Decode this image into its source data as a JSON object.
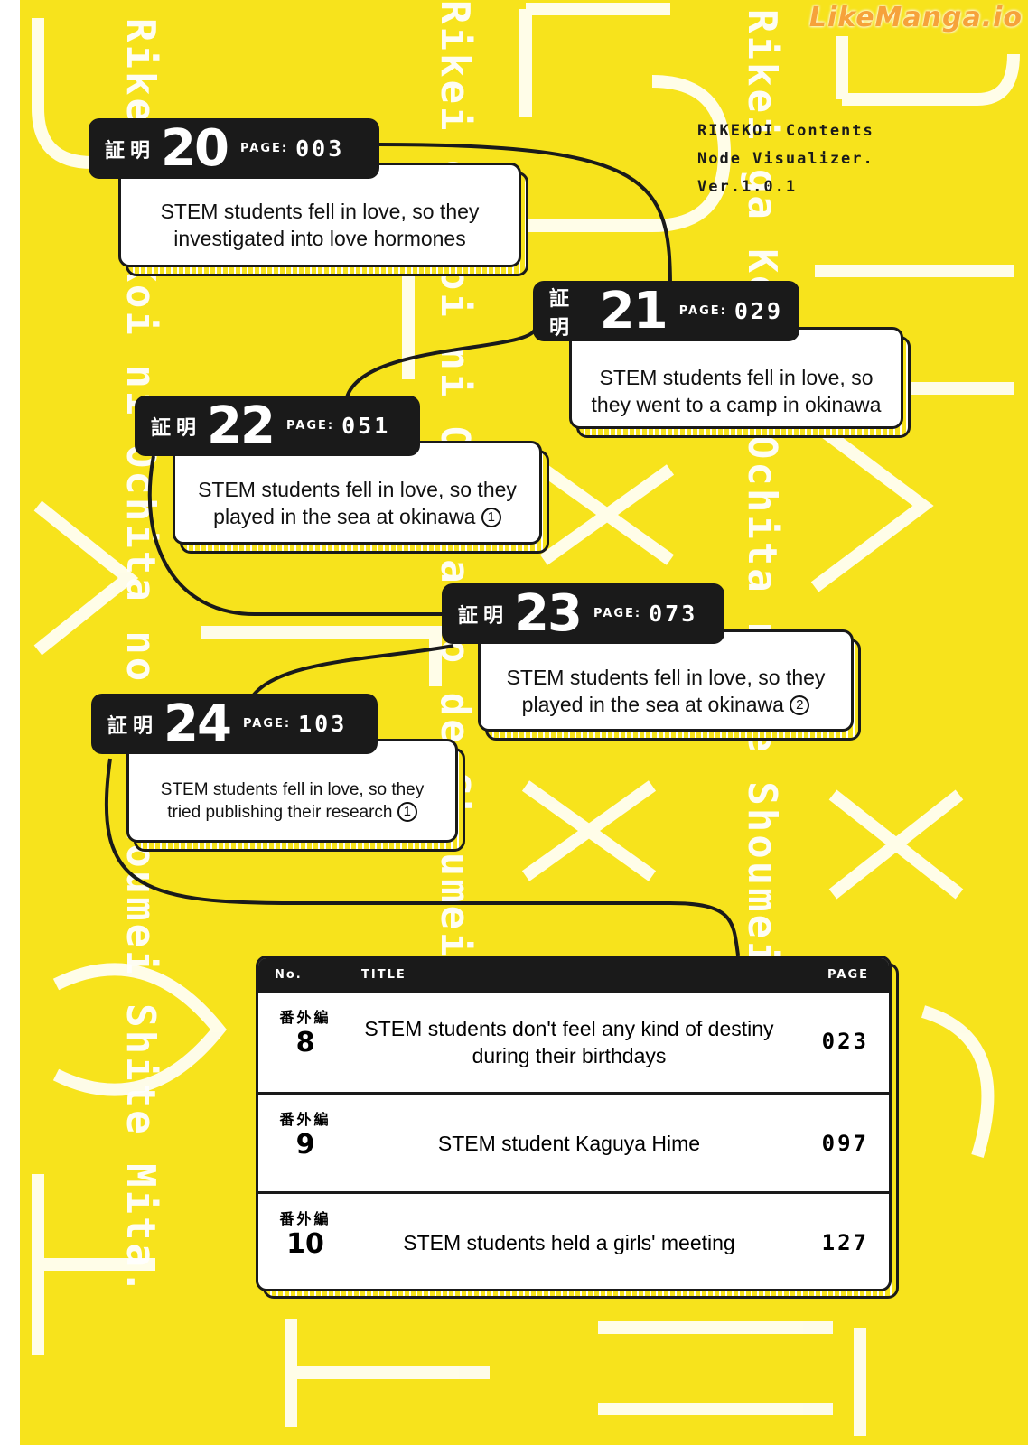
{
  "watermark": "LikeManga.io",
  "background_text": [
    "Rikei ga Koi ni Ochita no de Shoumei Shite Mita.",
    "Rikei ga Koi ni Ochita no de Shoumei Shite Mita.",
    "Rikei ga Koi ni Ochita no de Shoumei Shite Mita."
  ],
  "header": {
    "line1": "RIKEKOI Contents",
    "line2": "Node Visualizer.",
    "line3": "Ver.1.0.1"
  },
  "colors": {
    "background": "#f7e31c",
    "ink": "#1a1a1a",
    "card": "#ffffff"
  },
  "nodes": [
    {
      "kanji": "証明",
      "number": "20",
      "page_label": "PAGE:",
      "page": "003",
      "title": "STEM students fell in love, so they investigated into love hormones",
      "mark": ""
    },
    {
      "kanji": "証明",
      "number": "21",
      "page_label": "PAGE:",
      "page": "029",
      "title": "STEM students fell in love, so they went to a camp in okinawa",
      "mark": ""
    },
    {
      "kanji": "証明",
      "number": "22",
      "page_label": "PAGE:",
      "page": "051",
      "title": "STEM students fell in love, so they played in the sea at okinawa",
      "mark": "1"
    },
    {
      "kanji": "証明",
      "number": "23",
      "page_label": "PAGE:",
      "page": "073",
      "title": "STEM students fell in love, so they played in the sea at okinawa",
      "mark": "2"
    },
    {
      "kanji": "証明",
      "number": "24",
      "page_label": "PAGE:",
      "page": "103",
      "title": "STEM students fell in love, so they tried publishing their research",
      "mark": "1"
    }
  ],
  "table": {
    "headers": {
      "no": "No.",
      "title": "TITLE",
      "page": "PAGE"
    },
    "rows": [
      {
        "label": "番外編",
        "no": "8",
        "title": "STEM students don't feel any kind of destiny during their birthdays",
        "page": "023"
      },
      {
        "label": "番外編",
        "no": "9",
        "title": "STEM student Kaguya Hime",
        "page": "097"
      },
      {
        "label": "番外編",
        "no": "10",
        "title": "STEM students held a girls' meeting",
        "page": "127"
      }
    ]
  }
}
